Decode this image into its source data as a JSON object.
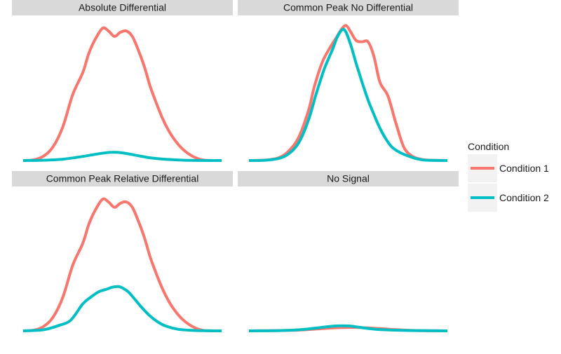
{
  "chart_data": {
    "type": "line",
    "facets": [
      {
        "title": "Absolute Differential",
        "series": [
          {
            "name": "Condition 1",
            "color": "#F8766D",
            "x": [
              0.0,
              0.05,
              0.1,
              0.15,
              0.2,
              0.25,
              0.3,
              0.33,
              0.36,
              0.4,
              0.43,
              0.46,
              0.49,
              0.52,
              0.55,
              0.58,
              0.61,
              0.64,
              0.67,
              0.7,
              0.73,
              0.76,
              0.8,
              0.85,
              0.9,
              0.95,
              1.0
            ],
            "y": [
              0.0,
              0.004,
              0.03,
              0.1,
              0.25,
              0.49,
              0.65,
              0.79,
              0.89,
              0.98,
              0.96,
              0.92,
              0.95,
              0.96,
              0.92,
              0.82,
              0.7,
              0.55,
              0.43,
              0.32,
              0.23,
              0.16,
              0.09,
              0.035,
              0.006,
              0.0,
              0.0
            ]
          },
          {
            "name": "Condition 2",
            "color": "#00BFC4",
            "x": [
              0.0,
              0.1,
              0.2,
              0.3,
              0.36,
              0.42,
              0.45,
              0.48,
              0.52,
              0.58,
              0.65,
              0.75,
              0.85,
              1.0
            ],
            "y": [
              0.0,
              0.002,
              0.01,
              0.03,
              0.045,
              0.058,
              0.061,
              0.06,
              0.052,
              0.036,
              0.018,
              0.006,
              0.001,
              0.0
            ]
          }
        ]
      },
      {
        "title": "Common Peak No Differential",
        "series": [
          {
            "name": "Condition 1",
            "color": "#F8766D",
            "x": [
              0.0,
              0.08,
              0.15,
              0.2,
              0.25,
              0.3,
              0.33,
              0.37,
              0.41,
              0.44,
              0.47,
              0.49,
              0.51,
              0.54,
              0.57,
              0.6,
              0.63,
              0.66,
              0.7,
              0.74,
              0.78,
              0.82,
              0.86,
              0.9,
              1.0
            ],
            "y": [
              0.0,
              0.003,
              0.02,
              0.07,
              0.17,
              0.37,
              0.55,
              0.73,
              0.84,
              0.91,
              0.98,
              1.0,
              0.96,
              0.89,
              0.88,
              0.88,
              0.77,
              0.58,
              0.48,
              0.28,
              0.1,
              0.035,
              0.012,
              0.003,
              0.0
            ]
          },
          {
            "name": "Condition 2",
            "color": "#00BFC4",
            "x": [
              0.0,
              0.08,
              0.15,
              0.2,
              0.25,
              0.3,
              0.34,
              0.38,
              0.42,
              0.45,
              0.48,
              0.51,
              0.54,
              0.57,
              0.6,
              0.63,
              0.66,
              0.69,
              0.72,
              0.76,
              0.8,
              0.84,
              0.88,
              0.92,
              1.0
            ],
            "y": [
              0.0,
              0.002,
              0.015,
              0.05,
              0.13,
              0.3,
              0.5,
              0.68,
              0.82,
              0.93,
              0.97,
              0.87,
              0.72,
              0.58,
              0.45,
              0.34,
              0.24,
              0.16,
              0.1,
              0.06,
              0.035,
              0.015,
              0.004,
              0.001,
              0.0
            ]
          }
        ]
      },
      {
        "title": "Common Peak Relative Differential",
        "series": [
          {
            "name": "Condition 1",
            "color": "#F8766D",
            "x": [
              0.0,
              0.05,
              0.1,
              0.15,
              0.2,
              0.25,
              0.3,
              0.33,
              0.36,
              0.4,
              0.43,
              0.46,
              0.49,
              0.52,
              0.55,
              0.58,
              0.61,
              0.64,
              0.67,
              0.7,
              0.73,
              0.76,
              0.8,
              0.85,
              0.9,
              0.95,
              1.0
            ],
            "y": [
              0.0,
              0.004,
              0.03,
              0.1,
              0.25,
              0.49,
              0.65,
              0.79,
              0.89,
              0.98,
              0.96,
              0.92,
              0.95,
              0.96,
              0.92,
              0.82,
              0.7,
              0.55,
              0.43,
              0.32,
              0.23,
              0.16,
              0.09,
              0.035,
              0.006,
              0.0,
              0.0
            ]
          },
          {
            "name": "Condition 2",
            "color": "#00BFC4",
            "x": [
              0.0,
              0.1,
              0.18,
              0.24,
              0.3,
              0.34,
              0.38,
              0.42,
              0.45,
              0.48,
              0.5,
              0.53,
              0.56,
              0.6,
              0.64,
              0.68,
              0.72,
              0.78,
              0.85,
              0.92,
              1.0
            ],
            "y": [
              0.0,
              0.008,
              0.04,
              0.08,
              0.2,
              0.25,
              0.29,
              0.31,
              0.325,
              0.33,
              0.32,
              0.29,
              0.24,
              0.17,
              0.11,
              0.065,
              0.035,
              0.012,
              0.004,
              0.001,
              0.0
            ]
          }
        ]
      },
      {
        "title": "No Signal",
        "series": [
          {
            "name": "Condition 1",
            "color": "#F8766D",
            "x": [
              0.0,
              0.15,
              0.25,
              0.33,
              0.4,
              0.46,
              0.5,
              0.55,
              0.6,
              0.68,
              0.76,
              0.86,
              1.0
            ],
            "y": [
              0.0,
              0.002,
              0.006,
              0.013,
              0.02,
              0.024,
              0.026,
              0.025,
              0.022,
              0.015,
              0.008,
              0.002,
              0.0
            ]
          },
          {
            "name": "Condition 2",
            "color": "#00BFC4",
            "x": [
              0.0,
              0.15,
              0.25,
              0.33,
              0.39,
              0.43,
              0.47,
              0.51,
              0.55,
              0.6,
              0.66,
              0.74,
              0.84,
              1.0
            ],
            "y": [
              0.0,
              0.002,
              0.008,
              0.02,
              0.03,
              0.036,
              0.038,
              0.036,
              0.028,
              0.018,
              0.01,
              0.005,
              0.002,
              0.0
            ]
          }
        ]
      }
    ],
    "xlim": [
      0,
      1
    ],
    "ylim": [
      0,
      1
    ],
    "grid": false,
    "legend_position": "right",
    "legend": {
      "title": "Condition",
      "entries": [
        {
          "label": "Condition 1",
          "color": "#F8766D"
        },
        {
          "label": "Condition 2",
          "color": "#00BFC4"
        }
      ]
    }
  }
}
